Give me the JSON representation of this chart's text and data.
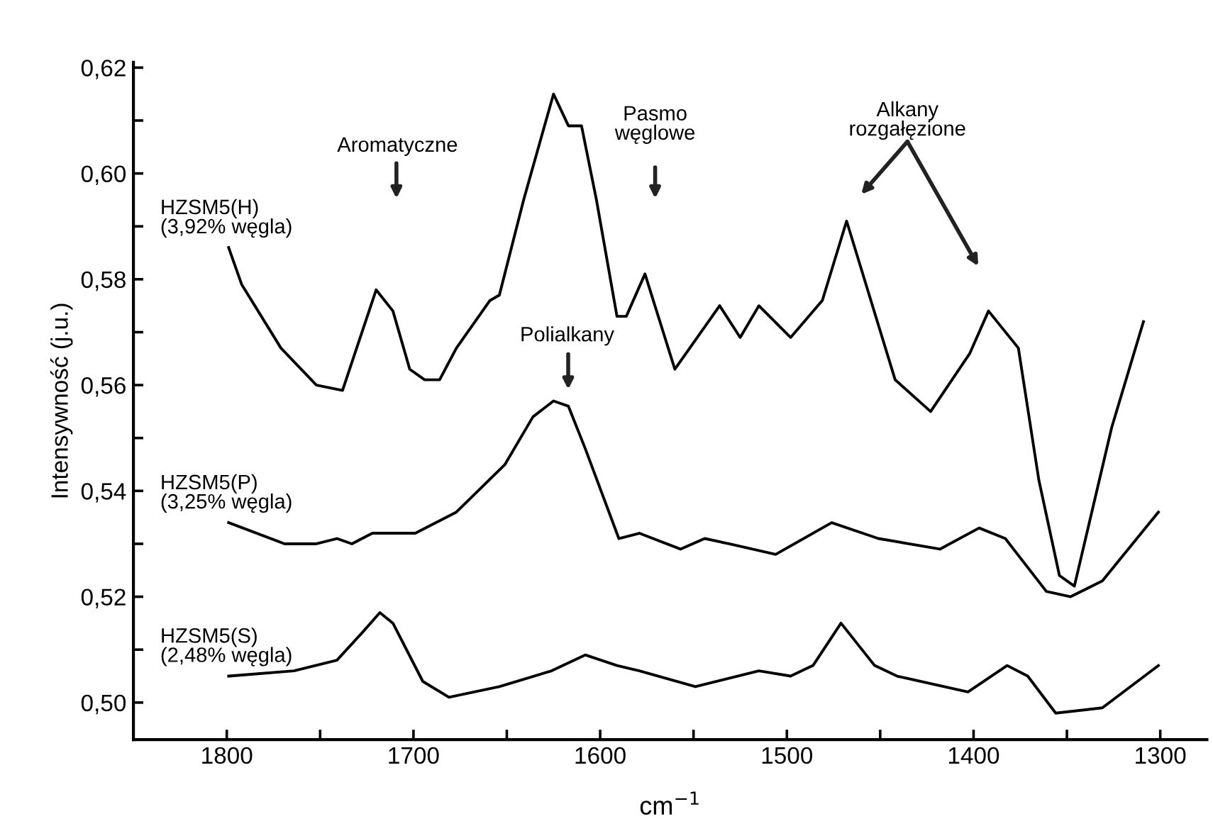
{
  "chart_data": {
    "type": "line",
    "xlabel": "cm$^{−1}$",
    "ylabel": "Intensywność (j.u.)",
    "xlim": [
      1850,
      1275
    ],
    "ylim": [
      0.493,
      0.621
    ],
    "xticks": [
      1800,
      {
        "value": 1750,
        "label": null
      },
      1700,
      {
        "value": 1650,
        "label": null
      },
      1600,
      {
        "value": 1550,
        "label": null
      },
      1500,
      {
        "value": 1450,
        "label": null
      },
      1400,
      {
        "value": 1350,
        "label": null
      },
      1300
    ],
    "yticks": [
      {
        "value": 0.5,
        "label": "0,50"
      },
      {
        "value": 0.51,
        "label": null
      },
      {
        "value": 0.52,
        "label": "0,52"
      },
      {
        "value": 0.53,
        "label": null
      },
      {
        "value": 0.54,
        "label": "0,54"
      },
      {
        "value": 0.55,
        "label": null
      },
      {
        "value": 0.56,
        "label": "0,56"
      },
      {
        "value": 0.57,
        "label": null
      },
      {
        "value": 0.58,
        "label": "0,58"
      },
      {
        "value": 0.59,
        "label": null
      },
      {
        "value": 0.6,
        "label": "0,60"
      },
      {
        "value": 0.61,
        "label": null
      },
      {
        "value": 0.62,
        "label": "0,62"
      }
    ],
    "grid": false,
    "legend": false,
    "marker": "none",
    "line_style": "solid",
    "series": [
      {
        "name": "HZSM5(H)\n(3,92% węgla)",
        "color": "#000000",
        "x": [
          1799,
          1792,
          1771,
          1752,
          1738,
          1720,
          1711,
          1702,
          1694,
          1686,
          1677,
          1659,
          1654,
          1641,
          1625,
          1617,
          1610,
          1602,
          1591,
          1586,
          1576,
          1560,
          1536,
          1525,
          1515,
          1498,
          1481,
          1468,
          1442,
          1423,
          1402,
          1392,
          1376,
          1365,
          1354,
          1346,
          1326,
          1309
        ],
        "values": [
          0.586,
          0.579,
          0.567,
          0.56,
          0.559,
          0.578,
          0.574,
          0.563,
          0.561,
          0.561,
          0.567,
          0.576,
          0.577,
          0.595,
          0.615,
          0.609,
          0.609,
          0.595,
          0.573,
          0.573,
          0.581,
          0.563,
          0.575,
          0.569,
          0.575,
          0.569,
          0.576,
          0.591,
          0.561,
          0.555,
          0.566,
          0.574,
          0.567,
          0.542,
          0.524,
          0.522,
          0.552,
          0.572
        ]
      },
      {
        "name": "HZSM5(P)\n(3,25% węgla)",
        "color": "#000000",
        "x": [
          1799,
          1769,
          1752,
          1741,
          1733,
          1722,
          1699,
          1677,
          1651,
          1636,
          1625,
          1617,
          1608,
          1590,
          1579,
          1557,
          1544,
          1531,
          1506,
          1476,
          1451,
          1418,
          1397,
          1383,
          1361,
          1348,
          1331,
          1301
        ],
        "values": [
          0.534,
          0.53,
          0.53,
          0.531,
          0.53,
          0.532,
          0.532,
          0.536,
          0.545,
          0.554,
          0.557,
          0.556,
          0.548,
          0.531,
          0.532,
          0.529,
          0.531,
          0.53,
          0.528,
          0.534,
          0.531,
          0.529,
          0.533,
          0.531,
          0.521,
          0.52,
          0.523,
          0.536
        ]
      },
      {
        "name": "HZSM5(S)\n(2,48% węgla)",
        "color": "#000000",
        "x": [
          1799,
          1764,
          1741,
          1728,
          1718,
          1711,
          1695,
          1681,
          1654,
          1626,
          1608,
          1591,
          1579,
          1549,
          1515,
          1498,
          1486,
          1471,
          1453,
          1441,
          1403,
          1382,
          1371,
          1356,
          1331,
          1301
        ],
        "values": [
          0.505,
          0.506,
          0.508,
          0.513,
          0.517,
          0.515,
          0.504,
          0.501,
          0.503,
          0.506,
          0.509,
          0.507,
          0.506,
          0.503,
          0.506,
          0.505,
          0.507,
          0.515,
          0.507,
          0.505,
          0.502,
          0.507,
          0.505,
          0.498,
          0.499,
          0.507
        ]
      }
    ],
    "annotations": [
      "Aromatyczne",
      "Polialkany",
      "Pasmo\nwęglowe",
      "Alkany\nrozgałęzione"
    ]
  }
}
